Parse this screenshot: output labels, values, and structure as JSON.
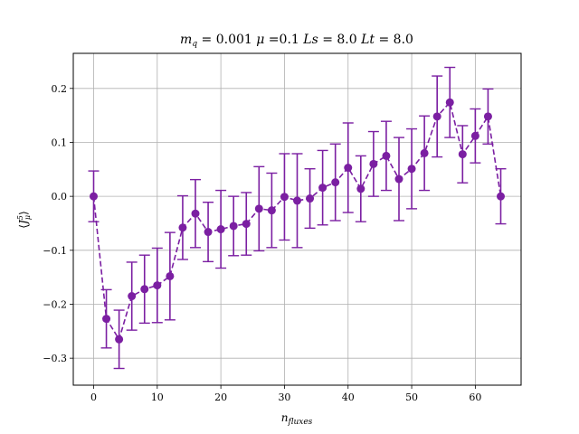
{
  "chart_data": {
    "type": "scatter",
    "title": "m_q = 0.001 μ =0.1 Ls = 8.0 Lt = 8.0",
    "xlabel": "n_fluxes",
    "ylabel": "⟨J⁵_μ⟩",
    "xlim": [
      -3.2,
      67.2
    ],
    "ylim": [
      -0.35,
      0.265
    ],
    "xticks": [
      0,
      10,
      20,
      30,
      40,
      50,
      60
    ],
    "yticks": [
      -0.3,
      -0.2,
      -0.1,
      0.0,
      0.1,
      0.2
    ],
    "xtick_labels": [
      "0",
      "10",
      "20",
      "30",
      "40",
      "50",
      "60"
    ],
    "ytick_labels": [
      "−0.3",
      "−0.2",
      "−0.1",
      "0.0",
      "0.1",
      "0.2"
    ],
    "grid": true,
    "legend": "none",
    "series": [
      {
        "color": "#7b1fa2",
        "marker": "circle",
        "linestyle": "dashed",
        "x": [
          0,
          2,
          4,
          6,
          8,
          10,
          12,
          14,
          16,
          18,
          20,
          22,
          24,
          26,
          28,
          30,
          32,
          34,
          36,
          38,
          40,
          42,
          44,
          46,
          48,
          50,
          52,
          54,
          56,
          58,
          60,
          62,
          64
        ],
        "y": [
          0.0,
          -0.227,
          -0.265,
          -0.185,
          -0.172,
          -0.165,
          -0.148,
          -0.058,
          -0.032,
          -0.066,
          -0.061,
          -0.055,
          -0.051,
          -0.023,
          -0.026,
          -0.001,
          -0.008,
          -0.004,
          0.016,
          0.026,
          0.053,
          0.014,
          0.06,
          0.075,
          0.032,
          0.051,
          0.08,
          0.148,
          0.174,
          0.078,
          0.112,
          0.148,
          0.0
        ],
        "err": [
          0.047,
          0.054,
          0.054,
          0.063,
          0.063,
          0.069,
          0.081,
          0.059,
          0.063,
          0.055,
          0.072,
          0.055,
          0.058,
          0.078,
          0.069,
          0.08,
          0.087,
          0.055,
          0.069,
          0.071,
          0.083,
          0.061,
          0.06,
          0.064,
          0.077,
          0.074,
          0.069,
          0.075,
          0.065,
          0.053,
          0.05,
          0.051,
          0.051
        ]
      }
    ]
  }
}
